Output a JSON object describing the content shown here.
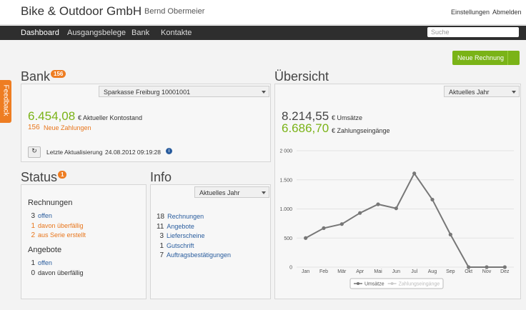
{
  "header": {
    "brand": "Bike & Outdoor GmbH",
    "user": "Bernd Obermeier",
    "links": [
      "Einstellungen",
      "Abmelden"
    ]
  },
  "nav": {
    "items": [
      "Dashboard",
      "Ausgangsbelege",
      "Bank",
      "Kontakte"
    ],
    "search": "Suche"
  },
  "new_button": "Neue Rechnung",
  "feedback": "Feedback",
  "bank": {
    "title": "Bank",
    "badge": 156,
    "account": "Sparkasse Freiburg 10001001",
    "balance": "6.454,08",
    "balance_label": "€ Aktueller Kontostand",
    "new_count": 156,
    "new_label": "Neue Zahlungen",
    "update_label": "Letzte Aktualisierung",
    "update_time": "24.08.2012 09:19:28"
  },
  "status": {
    "title": "Status",
    "badge": 1,
    "invoices_heading": "Rechnungen",
    "invoices": [
      {
        "count": 3,
        "label": "offen"
      },
      {
        "count": 1,
        "label": "davon überfällig"
      },
      {
        "count": 2,
        "label": "aus Serie erstellt"
      }
    ],
    "offers_heading": "Angebote",
    "offers": [
      {
        "count": 1,
        "label": "offen"
      },
      {
        "count": 0,
        "label": "davon überfällig"
      }
    ]
  },
  "info": {
    "title": "Info",
    "select": "Aktuelles Jahr",
    "items": [
      {
        "count": 18,
        "label": "Rechnungen"
      },
      {
        "count": 11,
        "label": "Angebote"
      },
      {
        "count": 3,
        "label": "Lieferscheine"
      },
      {
        "count": 1,
        "label": "Gutschrift"
      },
      {
        "count": 7,
        "label": "Auftragsbestätigungen"
      }
    ]
  },
  "overview": {
    "title": "Übersicht",
    "select": "Aktuelles Jahr",
    "revenue": "8.214,55",
    "revenue_label": "€ Umsätze",
    "payments": "6.686,70",
    "payments_label": "€ Zahlungseingänge"
  },
  "chart": {
    "type": "line",
    "categories": [
      "Jan",
      "Feb",
      "Mär",
      "Apr",
      "Mai",
      "Jun",
      "Jul",
      "Aug",
      "Sep",
      "Okt",
      "Nov",
      "Dez"
    ],
    "series": [
      {
        "name": "Umsätze",
        "color": "#777777",
        "values": [
          500,
          670,
          740,
          930,
          1080,
          1010,
          1610,
          1160,
          560,
          0,
          0,
          0
        ]
      }
    ],
    "hidden_series": [
      {
        "name": "Zahlungseingänge",
        "color": "#cccccc"
      }
    ],
    "ylim": [
      0,
      2000
    ],
    "yticks": [
      0,
      {
        "value": 500,
        "label": "500"
      },
      {
        "value": 1000,
        "label": "1.000"
      },
      {
        "value": 1500,
        "label": "1.500"
      },
      {
        "value": 2000,
        "label": "2 000"
      }
    ],
    "grid": true
  }
}
